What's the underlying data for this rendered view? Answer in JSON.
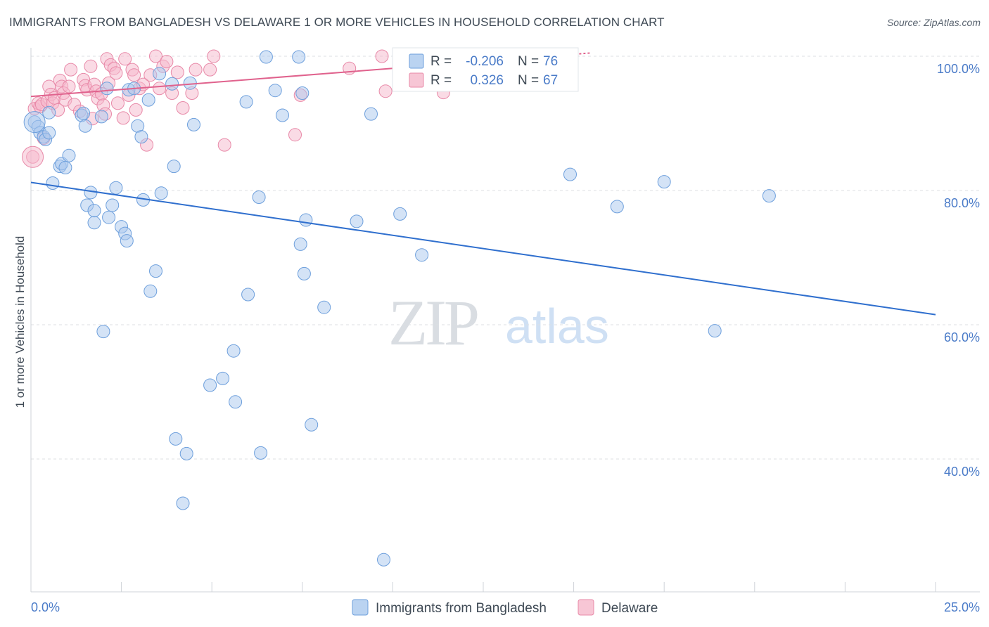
{
  "chart_data": {
    "type": "scatter",
    "title": "IMMIGRANTS FROM BANGLADESH VS DELAWARE 1 OR MORE VEHICLES IN HOUSEHOLD CORRELATION CHART",
    "source": "Source: ZipAtlas.com",
    "xlabel": "",
    "ylabel": "1 or more Vehicles in Household",
    "xlim": [
      0,
      25
    ],
    "ylim": [
      22,
      103
    ],
    "x_tick_labels": {
      "min": "0.0%",
      "max": "25.0%"
    },
    "y_ticks": [
      {
        "value": 100,
        "label": "100.0%"
      },
      {
        "value": 80,
        "label": "80.0%"
      },
      {
        "value": 60,
        "label": "60.0%"
      },
      {
        "value": 40,
        "label": "40.0%"
      }
    ],
    "grid": true,
    "watermark": {
      "zip": "ZIP",
      "atlas": "atlas"
    },
    "colors": {
      "blue_fill": "#a9c8ee",
      "blue_edge": "#6d9fdc",
      "blue_line": "#2f6fce",
      "pink_fill": "#f5b8cb",
      "pink_edge": "#e889a8",
      "pink_line": "#e0628d",
      "axis_text": "#4a7bc8",
      "grid": "#dcdfe3"
    },
    "stats": [
      {
        "series": "Immigrants from Bangladesh",
        "r_label": "R =",
        "r_value": "-0.206",
        "n_label": "N =",
        "n_value": "76"
      },
      {
        "series": "Delaware",
        "r_label": "R =",
        "r_value": "0.326",
        "n_label": "N =",
        "n_value": "67"
      }
    ],
    "series": [
      {
        "name": "Immigrants from Bangladesh",
        "color": "blue",
        "trend": {
          "x": [
            0,
            25
          ],
          "y": [
            81.2,
            61.5
          ]
        },
        "points": [
          [
            0.1,
            90.2
          ],
          [
            0.2,
            89.5
          ],
          [
            0.25,
            88.6
          ],
          [
            0.35,
            88.0
          ],
          [
            0.4,
            87.6
          ],
          [
            0.5,
            91.6
          ],
          [
            0.5,
            88.6
          ],
          [
            0.6,
            81.1
          ],
          [
            0.8,
            83.6
          ],
          [
            0.85,
            84.0
          ],
          [
            0.95,
            83.4
          ],
          [
            1.05,
            85.2
          ],
          [
            1.4,
            91.2
          ],
          [
            1.45,
            91.5
          ],
          [
            1.5,
            89.6
          ],
          [
            1.55,
            77.8
          ],
          [
            1.65,
            79.7
          ],
          [
            1.75,
            75.2
          ],
          [
            1.75,
            77.0
          ],
          [
            1.95,
            91.0
          ],
          [
            2.0,
            59.0
          ],
          [
            2.1,
            95.2
          ],
          [
            2.15,
            76.0
          ],
          [
            2.25,
            77.8
          ],
          [
            2.35,
            80.4
          ],
          [
            2.5,
            74.6
          ],
          [
            2.6,
            73.6
          ],
          [
            2.65,
            72.5
          ],
          [
            2.7,
            95.0
          ],
          [
            2.85,
            95.2
          ],
          [
            2.95,
            89.6
          ],
          [
            3.05,
            88.0
          ],
          [
            3.1,
            78.6
          ],
          [
            3.25,
            93.5
          ],
          [
            3.3,
            65.0
          ],
          [
            3.45,
            68.0
          ],
          [
            3.55,
            97.4
          ],
          [
            3.6,
            79.6
          ],
          [
            3.9,
            95.9
          ],
          [
            3.95,
            83.6
          ],
          [
            4.0,
            43.0
          ],
          [
            4.2,
            33.4
          ],
          [
            4.3,
            40.8
          ],
          [
            4.4,
            96.0
          ],
          [
            4.5,
            89.8
          ],
          [
            4.95,
            51.0
          ],
          [
            5.3,
            52.0
          ],
          [
            5.6,
            56.1
          ],
          [
            5.65,
            48.5
          ],
          [
            5.95,
            93.2
          ],
          [
            6.0,
            64.5
          ],
          [
            6.3,
            79.0
          ],
          [
            6.35,
            40.9
          ],
          [
            6.5,
            99.9
          ],
          [
            6.75,
            94.9
          ],
          [
            6.95,
            91.2
          ],
          [
            7.4,
            99.9
          ],
          [
            7.45,
            72.0
          ],
          [
            7.5,
            94.5
          ],
          [
            7.55,
            67.6
          ],
          [
            7.6,
            75.6
          ],
          [
            7.75,
            45.1
          ],
          [
            8.1,
            62.6
          ],
          [
            9.0,
            75.4
          ],
          [
            9.4,
            91.4
          ],
          [
            9.75,
            25.0
          ],
          [
            10.2,
            76.5
          ],
          [
            10.8,
            70.4
          ],
          [
            14.9,
            82.4
          ],
          [
            16.2,
            77.6
          ],
          [
            17.5,
            81.3
          ],
          [
            18.9,
            59.1
          ],
          [
            20.4,
            79.2
          ]
        ]
      },
      {
        "name": "Delaware",
        "color": "pink",
        "trend": {
          "x": [
            0,
            15.5
          ],
          "y": [
            94.0,
            100.5
          ]
        },
        "points": [
          [
            0.05,
            85.0
          ],
          [
            0.1,
            92.2
          ],
          [
            0.2,
            93.0
          ],
          [
            0.25,
            92.5
          ],
          [
            0.3,
            92.8
          ],
          [
            0.35,
            87.8
          ],
          [
            0.45,
            93.3
          ],
          [
            0.5,
            95.5
          ],
          [
            0.55,
            94.3
          ],
          [
            0.6,
            93.0
          ],
          [
            0.65,
            93.8
          ],
          [
            0.75,
            92.0
          ],
          [
            0.8,
            96.4
          ],
          [
            0.85,
            95.5
          ],
          [
            0.9,
            94.5
          ],
          [
            0.95,
            93.5
          ],
          [
            1.05,
            95.5
          ],
          [
            1.1,
            98.0
          ],
          [
            1.2,
            92.8
          ],
          [
            1.35,
            91.8
          ],
          [
            1.45,
            96.5
          ],
          [
            1.5,
            95.6
          ],
          [
            1.55,
            95.0
          ],
          [
            1.65,
            98.5
          ],
          [
            1.7,
            90.7
          ],
          [
            1.75,
            95.8
          ],
          [
            1.8,
            94.8
          ],
          [
            1.85,
            93.7
          ],
          [
            1.95,
            94.4
          ],
          [
            2.0,
            92.7
          ],
          [
            2.05,
            91.4
          ],
          [
            2.1,
            99.6
          ],
          [
            2.15,
            96.0
          ],
          [
            2.2,
            98.7
          ],
          [
            2.3,
            98.2
          ],
          [
            2.35,
            97.5
          ],
          [
            2.4,
            93.0
          ],
          [
            2.55,
            90.8
          ],
          [
            2.6,
            99.6
          ],
          [
            2.7,
            94.2
          ],
          [
            2.8,
            98.0
          ],
          [
            2.85,
            97.2
          ],
          [
            2.9,
            92.0
          ],
          [
            3.0,
            95.2
          ],
          [
            3.1,
            95.8
          ],
          [
            3.2,
            86.8
          ],
          [
            3.3,
            97.2
          ],
          [
            3.45,
            100.0
          ],
          [
            3.55,
            95.2
          ],
          [
            3.65,
            98.5
          ],
          [
            3.75,
            99.2
          ],
          [
            3.9,
            94.5
          ],
          [
            4.05,
            97.6
          ],
          [
            4.2,
            92.3
          ],
          [
            4.45,
            94.5
          ],
          [
            4.55,
            98.0
          ],
          [
            4.95,
            98.0
          ],
          [
            5.05,
            100.0
          ],
          [
            5.35,
            86.8
          ],
          [
            7.3,
            88.3
          ],
          [
            7.45,
            94.2
          ],
          [
            8.8,
            98.2
          ],
          [
            9.7,
            100.0
          ],
          [
            9.8,
            94.8
          ],
          [
            11.4,
            94.6
          ],
          [
            13.9,
            100.0
          ]
        ]
      }
    ]
  }
}
